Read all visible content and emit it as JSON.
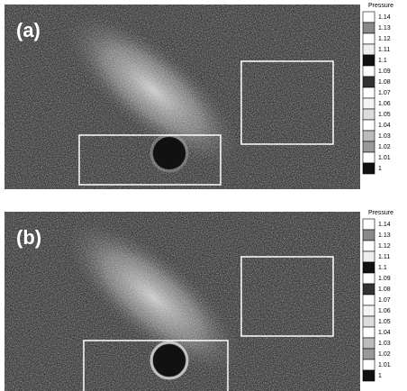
{
  "panels": [
    {
      "label": "(a)",
      "legend": {
        "title": "Pressure",
        "labels": [
          "1.14",
          "1.13",
          "1.12",
          "1.11",
          "1.1",
          "1.09",
          "1.08",
          "1.07",
          "1.06",
          "1.05",
          "1.04",
          "1.03",
          "1.02",
          "1.01",
          "1"
        ]
      }
    },
    {
      "label": "(b)",
      "legend": {
        "title": "Pressure",
        "labels": [
          "1.14",
          "1.13",
          "1.12",
          "1.11",
          "1.1",
          "1.09",
          "1.08",
          "1.07",
          "1.06",
          "1.05",
          "1.04",
          "1.03",
          "1.02",
          "1.01",
          "1"
        ]
      }
    }
  ]
}
